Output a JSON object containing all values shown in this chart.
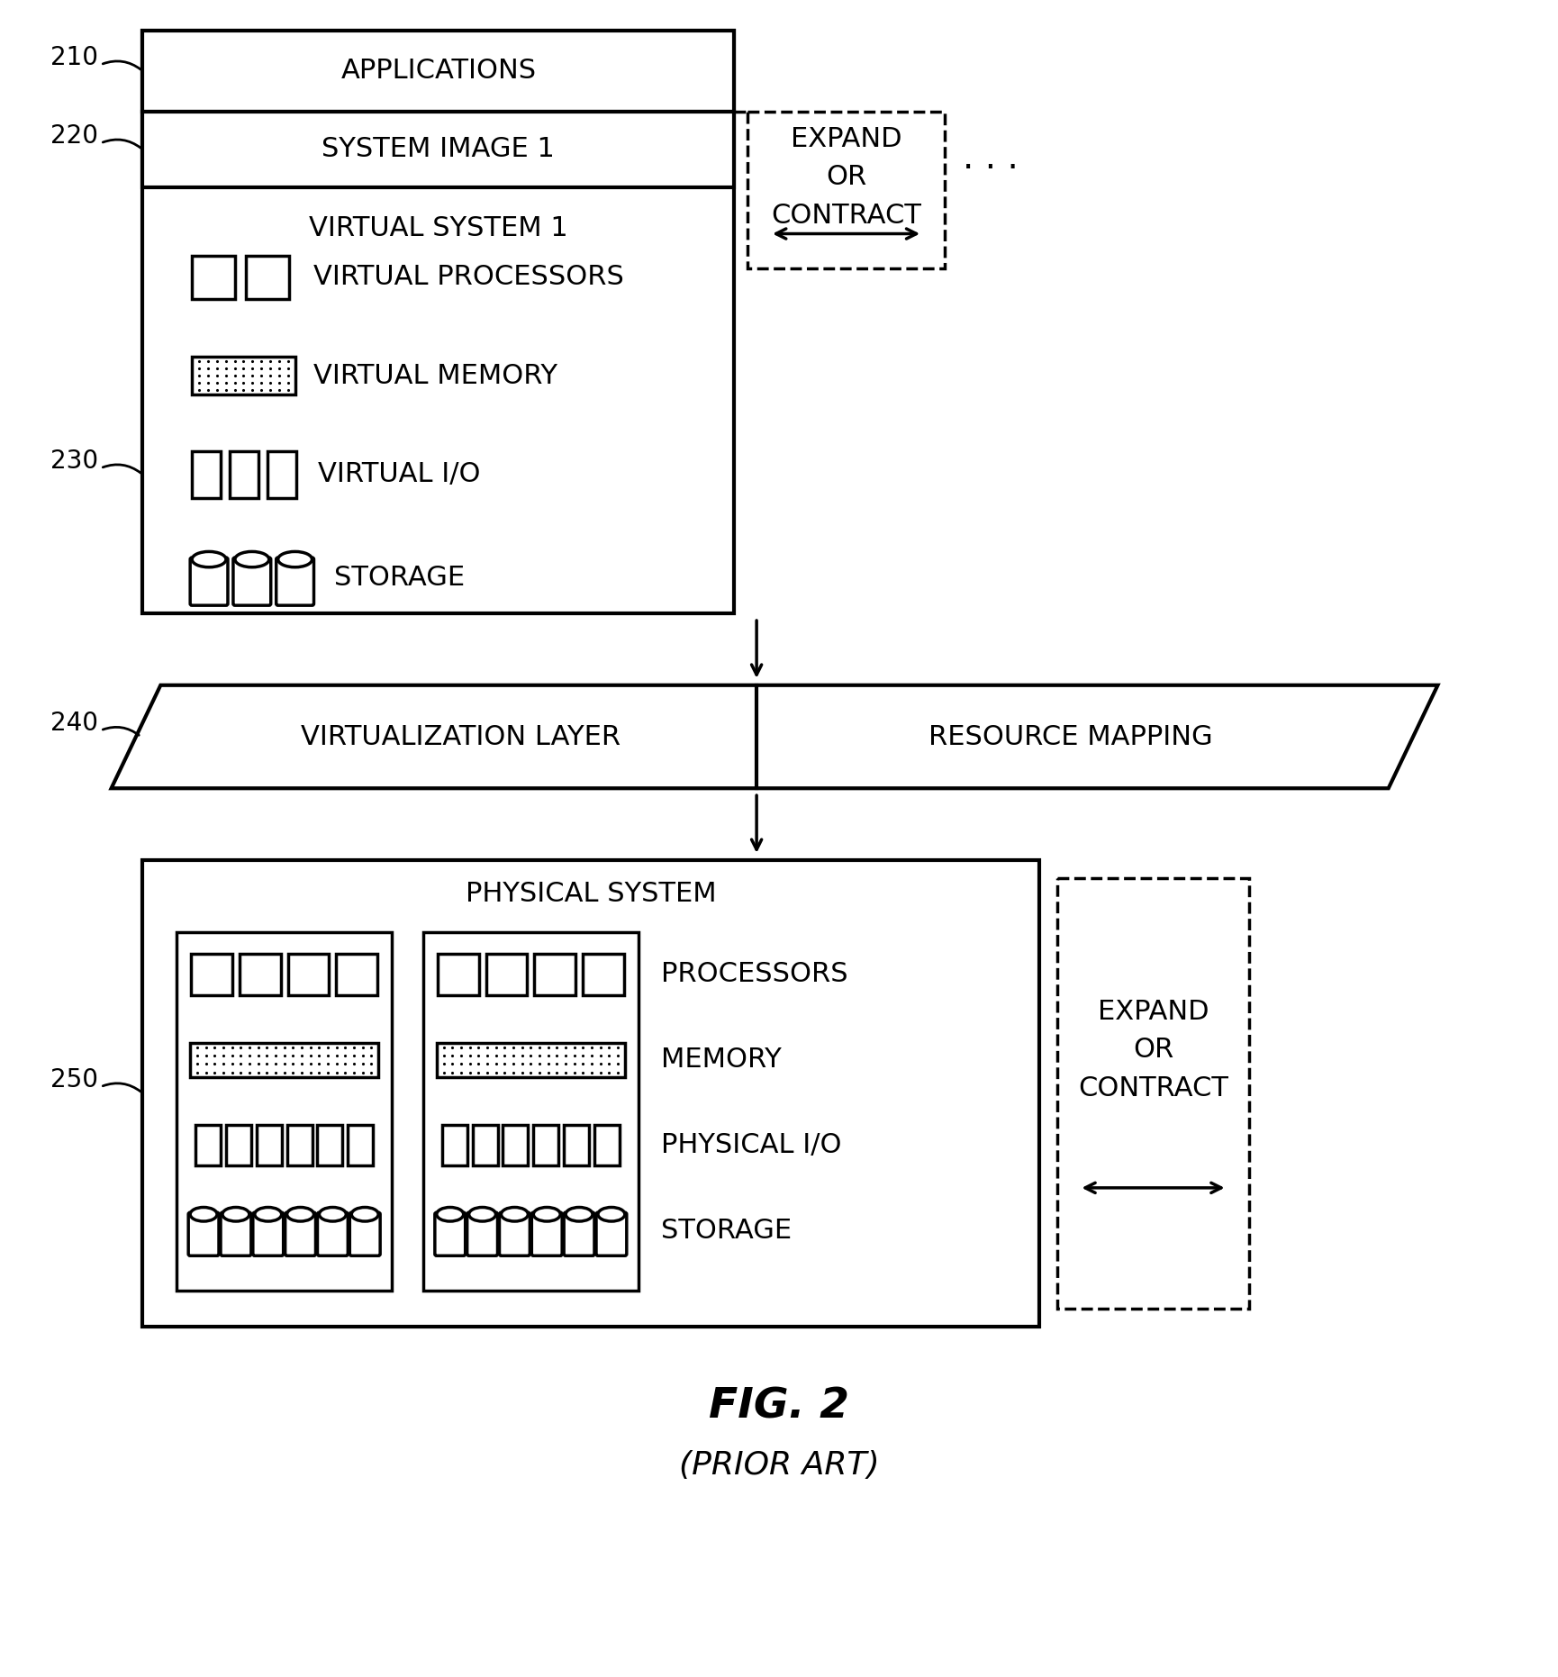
{
  "bg_color": "#ffffff",
  "fig_title": "FIG. 2",
  "fig_subtitle": "(PRIOR ART)",
  "labels": {
    "applications": "APPLICATIONS",
    "system_image": "SYSTEM IMAGE 1",
    "virtual_system": "VIRTUAL SYSTEM 1",
    "virtual_processors": "VIRTUAL PROCESSORS",
    "virtual_memory": "VIRTUAL MEMORY",
    "virtual_io": "VIRTUAL I/O",
    "storage_top": "STORAGE",
    "virt_layer": "VIRTUALIZATION LAYER",
    "resource_mapping": "RESOURCE MAPPING",
    "physical_system": "PHYSICAL SYSTEM",
    "processors": "PROCESSORS",
    "memory": "MEMORY",
    "physical_io": "PHYSICAL I/O",
    "storage_bottom": "STORAGE",
    "expand_contract": "EXPAND\nOR\nCONTRACT"
  }
}
